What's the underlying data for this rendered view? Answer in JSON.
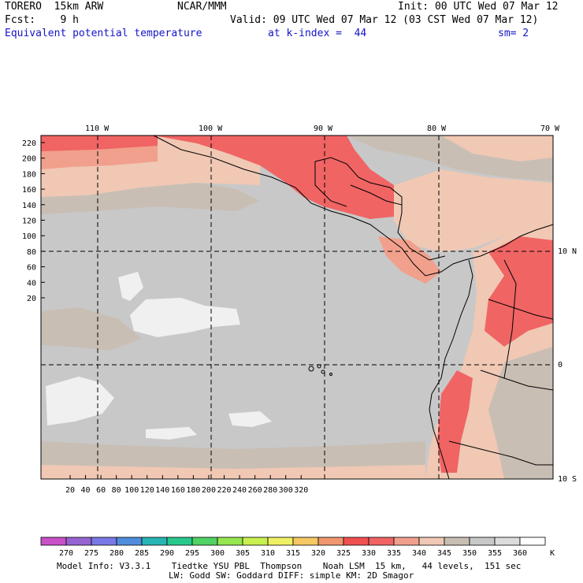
{
  "header": {
    "model": "TORERO  15km ARW",
    "center": "NCAR/MMM",
    "init": "Init: 00 UTC Wed 07 Mar 12",
    "fcst": "Fcst:    9 h",
    "valid": "Valid: 09 UTC Wed 07 Mar 12 (03 CST Wed 07 Mar 12)",
    "field": "Equivalent potential temperature",
    "level": "at k-index =  44",
    "smooth": "sm= 2"
  },
  "map": {
    "top_lon_labels": [
      "110 W",
      "100 W",
      "90 W",
      "80 W",
      "70 W"
    ],
    "right_lat_labels": [
      "10 N",
      "0",
      "10 S"
    ],
    "y_ticks": [
      "220",
      "200",
      "180",
      "160",
      "140",
      "120",
      "100",
      "80",
      "60",
      "40",
      "20"
    ],
    "x_ticks": [
      "20",
      "40",
      "60",
      "80",
      "100",
      "120",
      "140",
      "160",
      "180",
      "200",
      "220",
      "240",
      "260",
      "280",
      "300",
      "320"
    ]
  },
  "colorbar": {
    "values": [
      "270",
      "275",
      "280",
      "285",
      "290",
      "295",
      "300",
      "305",
      "310",
      "315",
      "320",
      "325",
      "330",
      "335",
      "340",
      "345",
      "350",
      "355",
      "360"
    ],
    "unit": "K",
    "colors": [
      "#c850c8",
      "#9664d2",
      "#7878e6",
      "#508cdc",
      "#28b4b4",
      "#28c88c",
      "#50d264",
      "#96e650",
      "#c8f050",
      "#f0f064",
      "#f5c864",
      "#f0966e",
      "#f05050",
      "#f06464",
      "#f0a08c",
      "#f0c8b4",
      "#c8beb4",
      "#c8c8c8",
      "#dcdcdc",
      "#ffffff"
    ]
  },
  "footer": {
    "line1": "Model Info: V3.3.1    Tiedtke YSU PBL  Thompson    Noah LSM  15 km,   44 levels,  151 sec",
    "line2": "LW: Godd SW: Goddard DIFF: simple KM: 2D Smagor"
  }
}
